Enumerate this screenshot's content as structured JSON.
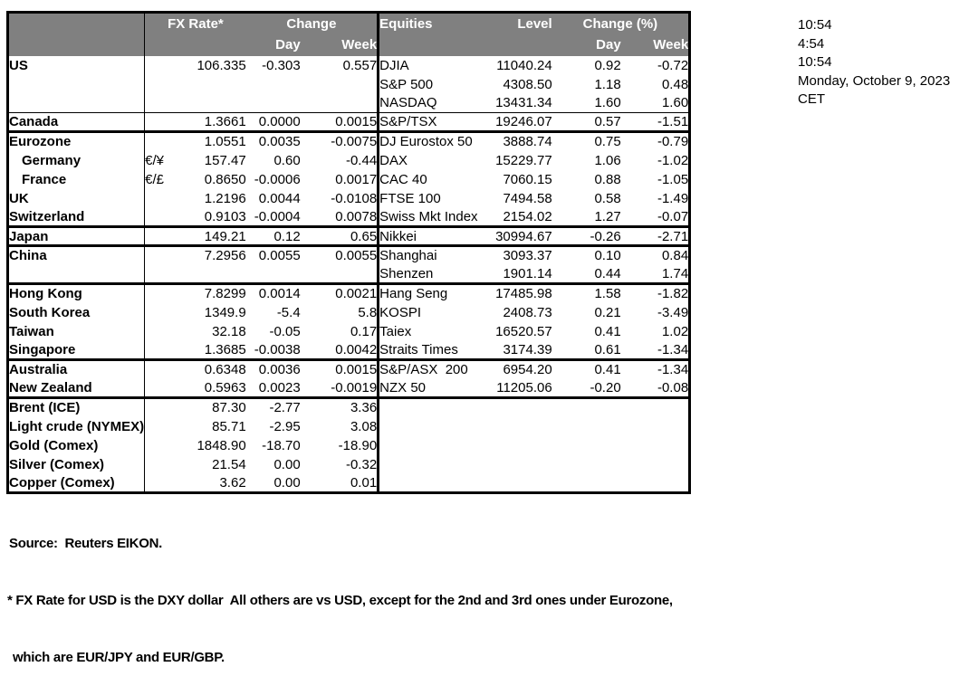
{
  "colors": {
    "header_bg": "#808080",
    "header_text": "#ffffff",
    "border": "#000000",
    "page_bg": "#ffffff"
  },
  "table": {
    "headers": {
      "fx_rate": "FX Rate*",
      "change": "Change",
      "day": "Day",
      "week": "Week",
      "equities": "Equities",
      "level": "Level",
      "change_pct": "Change (%)",
      "eq_day": "Day",
      "eq_week": "Week"
    },
    "rows": [
      {
        "label": "US",
        "indent": false,
        "sym": "",
        "rate": "106.335",
        "day": "-0.303",
        "week": "0.557",
        "eq": "DJIA",
        "level": "11040.24",
        "eday": "0.92",
        "eweek": "-0.72",
        "sep": "none"
      },
      {
        "label": "",
        "indent": false,
        "sym": "",
        "rate": "",
        "day": "",
        "week": "",
        "eq": "S&P 500",
        "level": "4308.50",
        "eday": "1.18",
        "eweek": "0.48",
        "sep": "none"
      },
      {
        "label": "",
        "indent": false,
        "sym": "",
        "rate": "",
        "day": "",
        "week": "",
        "eq": "NASDAQ",
        "level": "13431.34",
        "eday": "1.60",
        "eweek": "1.60",
        "sep": "none"
      },
      {
        "label": "Canada",
        "indent": false,
        "sym": "",
        "rate": "1.3661",
        "day": "0.0000",
        "week": "0.0015",
        "eq": "S&P/TSX",
        "level": "19246.07",
        "eday": "0.57",
        "eweek": "-1.51",
        "sep": "thin"
      },
      {
        "label": "Eurozone",
        "indent": false,
        "sym": "",
        "rate": "1.0551",
        "day": "0.0035",
        "week": "-0.0075",
        "eq": "DJ Eurostox 50",
        "level": "3888.74",
        "eday": "0.75",
        "eweek": "-0.79",
        "sep": "thick"
      },
      {
        "label": "Germany",
        "indent": true,
        "sym": "€/¥",
        "rate": "157.47",
        "day": "0.60",
        "week": "-0.44",
        "eq": "DAX",
        "level": "15229.77",
        "eday": "1.06",
        "eweek": "-1.02",
        "sep": "none"
      },
      {
        "label": "France",
        "indent": true,
        "sym": "€/£",
        "rate": "0.8650",
        "day": "-0.0006",
        "week": "0.0017",
        "eq": "CAC 40",
        "level": "7060.15",
        "eday": "0.88",
        "eweek": "-1.05",
        "sep": "none"
      },
      {
        "label": "UK",
        "indent": false,
        "sym": "",
        "rate": "1.2196",
        "day": "0.0044",
        "week": "-0.0108",
        "eq": "FTSE 100",
        "level": "7494.58",
        "eday": "0.58",
        "eweek": "-1.49",
        "sep": "none"
      },
      {
        "label": "Switzerland",
        "indent": false,
        "sym": "",
        "rate": "0.9103",
        "day": "-0.0004",
        "week": "0.0078",
        "eq": "Swiss Mkt Index",
        "level": "2154.02",
        "eday": "1.27",
        "eweek": "-0.07",
        "sep": "none"
      },
      {
        "label": "Japan",
        "indent": false,
        "sym": "",
        "rate": "149.21",
        "day": "0.12",
        "week": "0.65",
        "eq": "Nikkei",
        "level": "30994.67",
        "eday": "-0.26",
        "eweek": "-2.71",
        "sep": "thick"
      },
      {
        "label": "China",
        "indent": false,
        "sym": "",
        "rate": "7.2956",
        "day": "0.0055",
        "week": "0.0055",
        "eq": "Shanghai",
        "level": "3093.37",
        "eday": "0.10",
        "eweek": "0.84",
        "sep": "thick"
      },
      {
        "label": "",
        "indent": false,
        "sym": "",
        "rate": "",
        "day": "",
        "week": "",
        "eq": "Shenzen",
        "level": "1901.14",
        "eday": "0.44",
        "eweek": "1.74",
        "sep": "none"
      },
      {
        "label": "Hong Kong",
        "indent": false,
        "sym": "",
        "rate": "7.8299",
        "day": "0.0014",
        "week": "0.0021",
        "eq": "Hang Seng",
        "level": "17485.98",
        "eday": "1.58",
        "eweek": "-1.82",
        "sep": "thick"
      },
      {
        "label": "South Korea",
        "indent": false,
        "sym": "",
        "rate": "1349.9",
        "day": "-5.4",
        "week": "5.8",
        "eq": "KOSPI",
        "level": "2408.73",
        "eday": "0.21",
        "eweek": "-3.49",
        "sep": "none"
      },
      {
        "label": "Taiwan",
        "indent": false,
        "sym": "",
        "rate": "32.18",
        "day": "-0.05",
        "week": "0.17",
        "eq": "Taiex",
        "level": "16520.57",
        "eday": "0.41",
        "eweek": "1.02",
        "sep": "none"
      },
      {
        "label": "Singapore",
        "indent": false,
        "sym": "",
        "rate": "1.3685",
        "day": "-0.0038",
        "week": "0.0042",
        "eq": "Straits Times",
        "level": "3174.39",
        "eday": "0.61",
        "eweek": "-1.34",
        "sep": "none"
      },
      {
        "label": "Australia",
        "indent": false,
        "sym": "",
        "rate": "0.6348",
        "day": "0.0036",
        "week": "0.0015",
        "eq": "S&P/ASX  200",
        "level": "6954.20",
        "eday": "0.41",
        "eweek": "-1.34",
        "sep": "thick"
      },
      {
        "label": "New Zealand",
        "indent": false,
        "sym": "",
        "rate": "0.5963",
        "day": "0.0023",
        "week": "-0.0019",
        "eq": "NZX 50",
        "level": "11205.06",
        "eday": "-0.20",
        "eweek": "-0.08",
        "sep": "none"
      },
      {
        "label": "Brent (ICE)",
        "indent": false,
        "sym": "",
        "rate": "87.30",
        "day": "-2.77",
        "week": "3.36",
        "eq": "",
        "level": "",
        "eday": "",
        "eweek": "",
        "sep": "thick"
      },
      {
        "label": "Light crude (NYMEX)",
        "indent": false,
        "sym": "",
        "rate": "85.71",
        "day": "-2.95",
        "week": "3.08",
        "eq": "",
        "level": "",
        "eday": "",
        "eweek": "",
        "sep": "none"
      },
      {
        "label": "Gold (Comex)",
        "indent": false,
        "sym": "",
        "rate": "1848.90",
        "day": "-18.70",
        "week": "-18.90",
        "eq": "",
        "level": "",
        "eday": "",
        "eweek": "",
        "sep": "none"
      },
      {
        "label": "Silver (Comex)",
        "indent": false,
        "sym": "",
        "rate": "21.54",
        "day": "0.00",
        "week": "-0.32",
        "eq": "",
        "level": "",
        "eday": "",
        "eweek": "",
        "sep": "none"
      },
      {
        "label": "Copper (Comex)",
        "indent": false,
        "sym": "",
        "rate": "3.62",
        "day": "0.00",
        "week": "0.01",
        "eq": "",
        "level": "",
        "eday": "",
        "eweek": "",
        "sep": "none"
      }
    ]
  },
  "info_panel": {
    "lines": [
      "10:54",
      "4:54",
      "10:54",
      "Monday, October 9, 2023",
      "CET"
    ]
  },
  "footer": {
    "source": "Source:  Reuters EIKON.",
    "note1": "* FX Rate for USD is the DXY dollar  All others are vs USD, except for the 2nd and 3rd ones under Eurozone,",
    "note2": "which are EUR/JPY and EUR/GBP."
  }
}
